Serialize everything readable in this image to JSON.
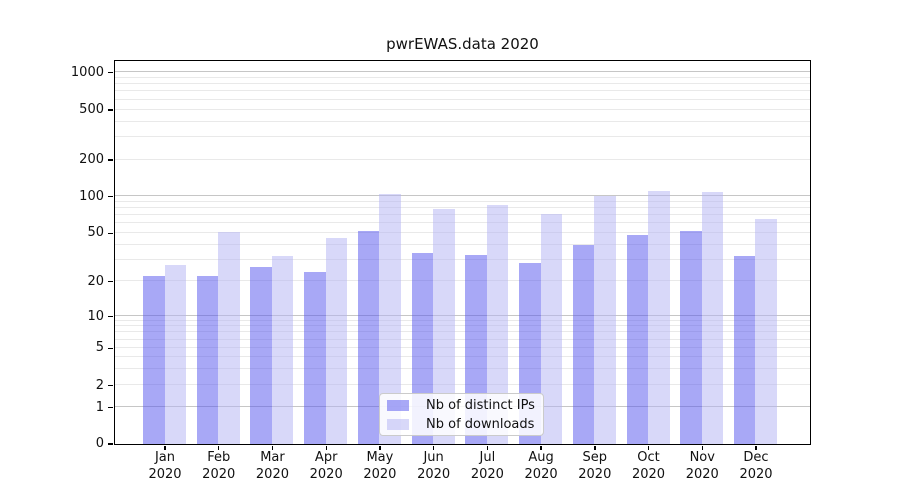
{
  "title": "pwrEWAS.data 2020",
  "colors": {
    "ips_fill": "rgba(82,82,238,0.5)",
    "downloads_fill": "rgba(177,177,243,0.5)",
    "grid_major": "#c6c6c6",
    "grid_minor": "#e9e9e9",
    "axis": "#000000",
    "legend_border": "#cbcbcb"
  },
  "y_axis": {
    "tick_labels": [
      "1000",
      "500",
      "200",
      "100",
      "50",
      "20",
      "10",
      "5",
      "2",
      "1",
      "0"
    ]
  },
  "legend": {
    "position": "lower center"
  },
  "chart_data": {
    "type": "bar",
    "title": "pwrEWAS.data 2020",
    "categories": [
      "Jan 2020",
      "Feb 2020",
      "Mar 2020",
      "Apr 2020",
      "May 2020",
      "Jun 2020",
      "Jul 2020",
      "Aug 2020",
      "Sep 2020",
      "Oct 2020",
      "Nov 2020",
      "Dec 2020"
    ],
    "series": [
      {
        "name": "Nb of distinct IPs",
        "values": [
          22,
          22,
          26,
          24,
          52,
          34,
          33,
          28,
          40,
          48,
          52,
          32
        ]
      },
      {
        "name": "Nb of downloads",
        "values": [
          27,
          51,
          32,
          45,
          105,
          78,
          85,
          72,
          100,
          110,
          108,
          65
        ]
      }
    ],
    "xlabel": "",
    "ylabel": "",
    "y_scale": "symlog",
    "y_ticks": [
      1000,
      500,
      200,
      100,
      50,
      20,
      10,
      5,
      2,
      1,
      0
    ],
    "ylim": [
      0,
      1400
    ],
    "grid": true,
    "legend_position": "lower center"
  }
}
